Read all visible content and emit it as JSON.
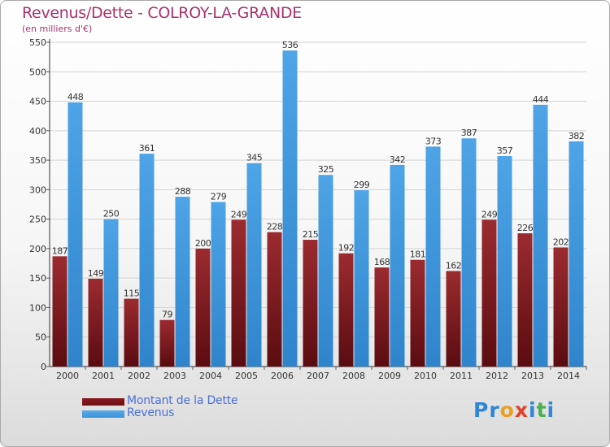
{
  "title": "Revenus/Dette - COLROY-LA-GRANDE",
  "subtitle": "(en milliers d'€)",
  "legend": [
    {
      "label": "Montant de la Dette",
      "color": "#6b0f14"
    },
    {
      "label": "Revenus",
      "color": "#3a92d8"
    }
  ],
  "logo": {
    "text": "Proxiti",
    "letters": [
      "P",
      "r",
      "o",
      "x",
      "i",
      "t",
      "i"
    ],
    "colors": [
      "#2e86d6",
      "#2e86d6",
      "#e8a020",
      "#e0402a",
      "#2e86d6",
      "#4caf50",
      "#2e86d6"
    ]
  },
  "chart_data": {
    "type": "bar",
    "categories": [
      "2000",
      "2001",
      "2002",
      "2003",
      "2004",
      "2005",
      "2006",
      "2007",
      "2008",
      "2009",
      "2010",
      "2011",
      "2012",
      "2013",
      "2014"
    ],
    "series": [
      {
        "name": "Montant de la Dette",
        "color": "#6b0f14",
        "values": [
          187,
          149,
          115,
          79,
          200,
          249,
          228,
          215,
          192,
          168,
          181,
          162,
          249,
          226,
          202
        ]
      },
      {
        "name": "Revenus",
        "color": "#3a92d8",
        "values": [
          448,
          250,
          361,
          288,
          279,
          345,
          536,
          325,
          299,
          342,
          373,
          387,
          357,
          444,
          382
        ]
      }
    ],
    "ylim": [
      0,
      550
    ],
    "yticks": [
      0,
      50,
      100,
      150,
      200,
      250,
      300,
      350,
      400,
      450,
      500,
      550
    ],
    "grid": true
  }
}
